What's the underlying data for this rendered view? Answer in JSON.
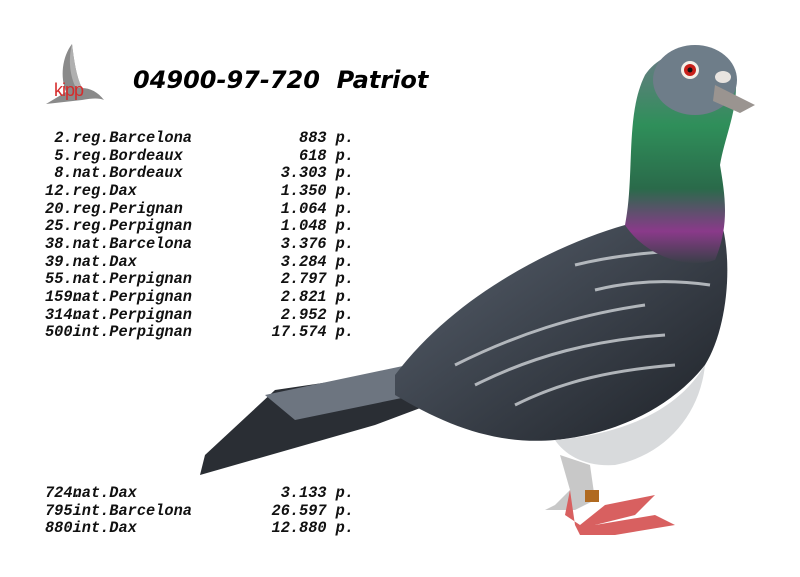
{
  "logo": {
    "text": "kipp"
  },
  "title": "04900-97-720  Patriot",
  "results_top": [
    {
      "rank": "2.",
      "race": "reg.Barcelona",
      "points": "883",
      "unit": "p."
    },
    {
      "rank": "5.",
      "race": "reg.Bordeaux",
      "points": "618",
      "unit": "p."
    },
    {
      "rank": "8.",
      "race": "nat.Bordeaux",
      "points": "3.303",
      "unit": "p."
    },
    {
      "rank": "12.",
      "race": "reg.Dax",
      "points": "1.350",
      "unit": "p."
    },
    {
      "rank": "20.",
      "race": "reg.Perignan",
      "points": "1.064",
      "unit": "p."
    },
    {
      "rank": "25.",
      "race": "reg.Perpignan",
      "points": "1.048",
      "unit": "p."
    },
    {
      "rank": "38.",
      "race": "nat.Barcelona",
      "points": "3.376",
      "unit": "p."
    },
    {
      "rank": "39.",
      "race": "nat.Dax",
      "points": "3.284",
      "unit": "p."
    },
    {
      "rank": "55.",
      "race": "nat.Perpignan",
      "points": "2.797",
      "unit": "p."
    },
    {
      "rank": "159.",
      "race": "nat.Perpignan",
      "points": "2.821",
      "unit": "p."
    },
    {
      "rank": "314.",
      "race": "nat.Perpignan",
      "points": "2.952",
      "unit": "p."
    },
    {
      "rank": "500.",
      "race": "int.Perpignan",
      "points": "17.574",
      "unit": "p."
    }
  ],
  "results_bottom": [
    {
      "rank": "724.",
      "race": "nat.Dax",
      "points": "3.133",
      "unit": "p."
    },
    {
      "rank": "795.",
      "race": "int.Barcelona",
      "points": "26.597",
      "unit": "p."
    },
    {
      "rank": "880.",
      "race": "int.Dax",
      "points": "12.880",
      "unit": "p."
    }
  ]
}
